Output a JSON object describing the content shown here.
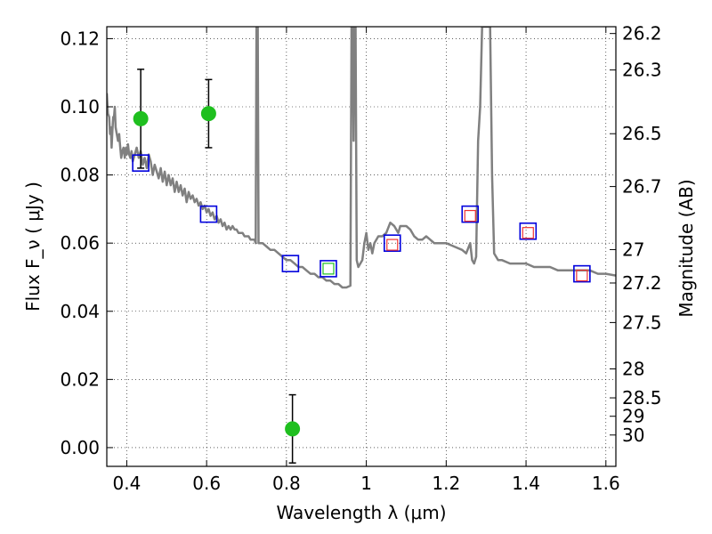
{
  "chart_data": {
    "type": "scatter",
    "title": "",
    "xlabel": "Wavelength  λ (μm)",
    "ylabel": "Flux  F_ν  ( μJy )",
    "ylabel_right": "Magnitude (AB)",
    "xlim": [
      0.35,
      1.625
    ],
    "ylim": [
      -0.0055,
      0.1235
    ],
    "grid": true,
    "x_ticks": [
      {
        "value": 0.4,
        "label": "0.4"
      },
      {
        "value": 0.6,
        "label": "0.6"
      },
      {
        "value": 0.8,
        "label": "0.8"
      },
      {
        "value": 1.0,
        "label": "1"
      },
      {
        "value": 1.2,
        "label": "1.2"
      },
      {
        "value": 1.4,
        "label": "1.4"
      },
      {
        "value": 1.6,
        "label": "1.6"
      }
    ],
    "y_ticks": [
      {
        "value": 0.0,
        "label": "0.00"
      },
      {
        "value": 0.02,
        "label": "0.02"
      },
      {
        "value": 0.04,
        "label": "0.04"
      },
      {
        "value": 0.06,
        "label": "0.06"
      },
      {
        "value": 0.08,
        "label": "0.08"
      },
      {
        "value": 0.1,
        "label": "0.10"
      },
      {
        "value": 0.12,
        "label": "0.12"
      }
    ],
    "right_ticks": [
      {
        "label": "26.2",
        "flux": 0.1215
      },
      {
        "label": "26.3",
        "flux": 0.1108
      },
      {
        "label": "26.5",
        "flux": 0.0921
      },
      {
        "label": "26.7",
        "flux": 0.0766
      },
      {
        "label": "27",
        "flux": 0.0581
      },
      {
        "label": "27.2",
        "flux": 0.0483
      },
      {
        "label": "27.5",
        "flux": 0.0367
      },
      {
        "label": "28",
        "flux": 0.0231
      },
      {
        "label": "28.5",
        "flux": 0.0146
      },
      {
        "label": "29",
        "flux": 0.0092
      },
      {
        "label": "30",
        "flux": 0.0037
      }
    ],
    "series": [
      {
        "type": "line",
        "color": "#808080",
        "points": [
          [
            0.35,
            0.104
          ],
          [
            0.353,
            0.098
          ],
          [
            0.356,
            0.097
          ],
          [
            0.358,
            0.092
          ],
          [
            0.36,
            0.094
          ],
          [
            0.362,
            0.088
          ],
          [
            0.364,
            0.093
          ],
          [
            0.366,
            0.097
          ],
          [
            0.368,
            0.097
          ],
          [
            0.37,
            0.1
          ],
          [
            0.372,
            0.094
          ],
          [
            0.375,
            0.092
          ],
          [
            0.378,
            0.09
          ],
          [
            0.381,
            0.092
          ],
          [
            0.383,
            0.089
          ],
          [
            0.386,
            0.085
          ],
          [
            0.389,
            0.087
          ],
          [
            0.392,
            0.088
          ],
          [
            0.395,
            0.085
          ],
          [
            0.398,
            0.088
          ],
          [
            0.4,
            0.086
          ],
          [
            0.403,
            0.089
          ],
          [
            0.406,
            0.086
          ],
          [
            0.409,
            0.085
          ],
          [
            0.412,
            0.087
          ],
          [
            0.415,
            0.084
          ],
          [
            0.42,
            0.086
          ],
          [
            0.425,
            0.088
          ],
          [
            0.43,
            0.085
          ],
          [
            0.435,
            0.087
          ],
          [
            0.44,
            0.083
          ],
          [
            0.445,
            0.085
          ],
          [
            0.45,
            0.082
          ],
          [
            0.455,
            0.086
          ],
          [
            0.46,
            0.084
          ],
          [
            0.465,
            0.08
          ],
          [
            0.47,
            0.083
          ],
          [
            0.475,
            0.081
          ],
          [
            0.48,
            0.079
          ],
          [
            0.485,
            0.082
          ],
          [
            0.49,
            0.078
          ],
          [
            0.495,
            0.081
          ],
          [
            0.5,
            0.077
          ],
          [
            0.505,
            0.08
          ],
          [
            0.51,
            0.077
          ],
          [
            0.515,
            0.079
          ],
          [
            0.52,
            0.075
          ],
          [
            0.525,
            0.078
          ],
          [
            0.53,
            0.075
          ],
          [
            0.535,
            0.077
          ],
          [
            0.54,
            0.074
          ],
          [
            0.545,
            0.076
          ],
          [
            0.55,
            0.072
          ],
          [
            0.555,
            0.075
          ],
          [
            0.56,
            0.073
          ],
          [
            0.565,
            0.074
          ],
          [
            0.57,
            0.072
          ],
          [
            0.575,
            0.073
          ],
          [
            0.58,
            0.071
          ],
          [
            0.585,
            0.072
          ],
          [
            0.59,
            0.07
          ],
          [
            0.595,
            0.071
          ],
          [
            0.6,
            0.069
          ],
          [
            0.605,
            0.07
          ],
          [
            0.61,
            0.068
          ],
          [
            0.615,
            0.069
          ],
          [
            0.62,
            0.067
          ],
          [
            0.625,
            0.068
          ],
          [
            0.63,
            0.066
          ],
          [
            0.635,
            0.067
          ],
          [
            0.64,
            0.065
          ],
          [
            0.645,
            0.066
          ],
          [
            0.65,
            0.064
          ],
          [
            0.655,
            0.065
          ],
          [
            0.66,
            0.064
          ],
          [
            0.665,
            0.065
          ],
          [
            0.67,
            0.064
          ],
          [
            0.675,
            0.064
          ],
          [
            0.68,
            0.063
          ],
          [
            0.685,
            0.063
          ],
          [
            0.69,
            0.063
          ],
          [
            0.695,
            0.062
          ],
          [
            0.7,
            0.062
          ],
          [
            0.705,
            0.062
          ],
          [
            0.71,
            0.061
          ],
          [
            0.715,
            0.061
          ],
          [
            0.72,
            0.061
          ],
          [
            0.723,
            0.06
          ],
          [
            0.725,
            0.124
          ],
          [
            0.728,
            0.124
          ],
          [
            0.73,
            0.06
          ],
          [
            0.735,
            0.06
          ],
          [
            0.74,
            0.06
          ],
          [
            0.75,
            0.059
          ],
          [
            0.76,
            0.058
          ],
          [
            0.77,
            0.058
          ],
          [
            0.78,
            0.057
          ],
          [
            0.79,
            0.056
          ],
          [
            0.8,
            0.055
          ],
          [
            0.81,
            0.055
          ],
          [
            0.82,
            0.054
          ],
          [
            0.83,
            0.053
          ],
          [
            0.84,
            0.053
          ],
          [
            0.85,
            0.052
          ],
          [
            0.86,
            0.051
          ],
          [
            0.87,
            0.051
          ],
          [
            0.88,
            0.05
          ],
          [
            0.89,
            0.05
          ],
          [
            0.9,
            0.049
          ],
          [
            0.91,
            0.049
          ],
          [
            0.92,
            0.048
          ],
          [
            0.93,
            0.048
          ],
          [
            0.94,
            0.047
          ],
          [
            0.95,
            0.047
          ],
          [
            0.96,
            0.0475
          ],
          [
            0.963,
            0.124
          ],
          [
            0.966,
            0.124
          ],
          [
            0.968,
            0.09
          ],
          [
            0.97,
            0.124
          ],
          [
            0.973,
            0.124
          ],
          [
            0.976,
            0.055
          ],
          [
            0.98,
            0.053
          ],
          [
            0.99,
            0.055
          ],
          [
            0.995,
            0.06
          ],
          [
            1.0,
            0.063
          ],
          [
            1.005,
            0.058
          ],
          [
            1.01,
            0.06
          ],
          [
            1.015,
            0.057
          ],
          [
            1.02,
            0.06
          ],
          [
            1.03,
            0.062
          ],
          [
            1.04,
            0.062
          ],
          [
            1.05,
            0.063
          ],
          [
            1.06,
            0.066
          ],
          [
            1.07,
            0.065
          ],
          [
            1.08,
            0.063
          ],
          [
            1.085,
            0.065
          ],
          [
            1.1,
            0.065
          ],
          [
            1.11,
            0.064
          ],
          [
            1.12,
            0.062
          ],
          [
            1.13,
            0.061
          ],
          [
            1.14,
            0.061
          ],
          [
            1.15,
            0.062
          ],
          [
            1.16,
            0.061
          ],
          [
            1.17,
            0.06
          ],
          [
            1.2,
            0.06
          ],
          [
            1.22,
            0.059
          ],
          [
            1.24,
            0.058
          ],
          [
            1.25,
            0.057
          ],
          [
            1.26,
            0.06
          ],
          [
            1.265,
            0.055
          ],
          [
            1.27,
            0.054
          ],
          [
            1.275,
            0.056
          ],
          [
            1.28,
            0.09
          ],
          [
            1.285,
            0.1
          ],
          [
            1.29,
            0.1235
          ],
          [
            1.31,
            0.1235
          ],
          [
            1.315,
            0.08
          ],
          [
            1.32,
            0.057
          ],
          [
            1.33,
            0.055
          ],
          [
            1.34,
            0.055
          ],
          [
            1.36,
            0.054
          ],
          [
            1.38,
            0.054
          ],
          [
            1.4,
            0.054
          ],
          [
            1.42,
            0.053
          ],
          [
            1.44,
            0.053
          ],
          [
            1.46,
            0.053
          ],
          [
            1.48,
            0.052
          ],
          [
            1.5,
            0.052
          ],
          [
            1.52,
            0.052
          ],
          [
            1.54,
            0.052
          ],
          [
            1.56,
            0.052
          ],
          [
            1.58,
            0.051
          ],
          [
            1.6,
            0.051
          ],
          [
            1.625,
            0.0505
          ]
        ]
      },
      {
        "type": "scatter",
        "marker": "circle",
        "color": "#1fbf1f",
        "points": [
          {
            "x": 0.435,
            "y": 0.0965,
            "err": 0.0145
          },
          {
            "x": 0.605,
            "y": 0.098,
            "err": 0.01
          },
          {
            "x": 0.815,
            "y": 0.0055,
            "err": 0.01
          }
        ]
      },
      {
        "type": "scatter",
        "marker": "square",
        "color": "#0000dd",
        "points": [
          {
            "x": 0.435,
            "y": 0.0835
          },
          {
            "x": 0.605,
            "y": 0.0685
          },
          {
            "x": 0.81,
            "y": 0.054
          },
          {
            "x": 0.905,
            "y": 0.0525
          },
          {
            "x": 1.065,
            "y": 0.06
          },
          {
            "x": 1.26,
            "y": 0.0685
          },
          {
            "x": 1.405,
            "y": 0.0635
          },
          {
            "x": 1.54,
            "y": 0.051
          }
        ]
      },
      {
        "type": "scatter",
        "marker": "small-square",
        "color": "#1fbf1f",
        "points": [
          {
            "x": 0.905,
            "y": 0.0525
          }
        ]
      },
      {
        "type": "scatter",
        "marker": "small-square",
        "color": "#ee3333",
        "points": [
          {
            "x": 1.065,
            "y": 0.0595
          },
          {
            "x": 1.26,
            "y": 0.068
          },
          {
            "x": 1.405,
            "y": 0.063
          },
          {
            "x": 1.54,
            "y": 0.0505
          }
        ]
      }
    ]
  }
}
